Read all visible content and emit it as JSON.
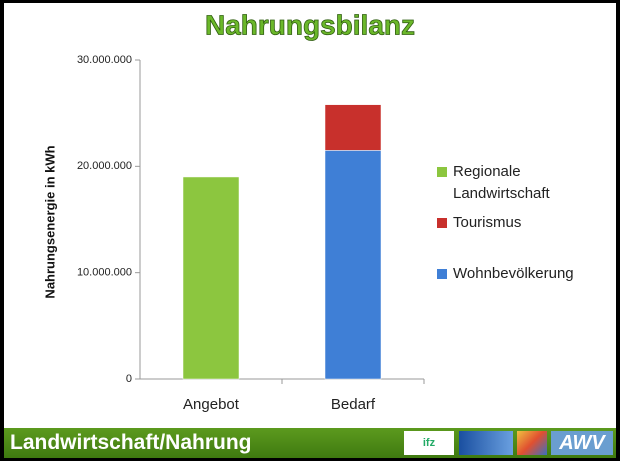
{
  "chart_data": {
    "type": "stacked_bar",
    "title": "Nahrungsbilanz",
    "y_label": "Nahrungsenergie in kWh",
    "categories": [
      "Angebot",
      "Bedarf"
    ],
    "series": [
      {
        "name": "Regionale Landwirtschaft",
        "color": "#8cc63f",
        "values": [
          19000000,
          null
        ]
      },
      {
        "name": "Tourismus",
        "color": "#c8302c",
        "values": [
          null,
          4300000
        ]
      },
      {
        "name": "Wohnbevölkerung",
        "color": "#3f7fd6",
        "values": [
          null,
          21500000
        ]
      }
    ],
    "ylim": [
      0,
      30000000
    ],
    "yticks": [
      0,
      {
        "value": 10000000,
        "label": "10.000.000"
      },
      {
        "value": 20000000,
        "label": "20.000.000"
      },
      {
        "value": 30000000,
        "label": "30.000.000"
      }
    ],
    "legend": "right",
    "grid": false
  },
  "footer": {
    "title": "Landwirtschaft/Nahrung",
    "logos": [
      "ifz",
      "AWV"
    ]
  }
}
